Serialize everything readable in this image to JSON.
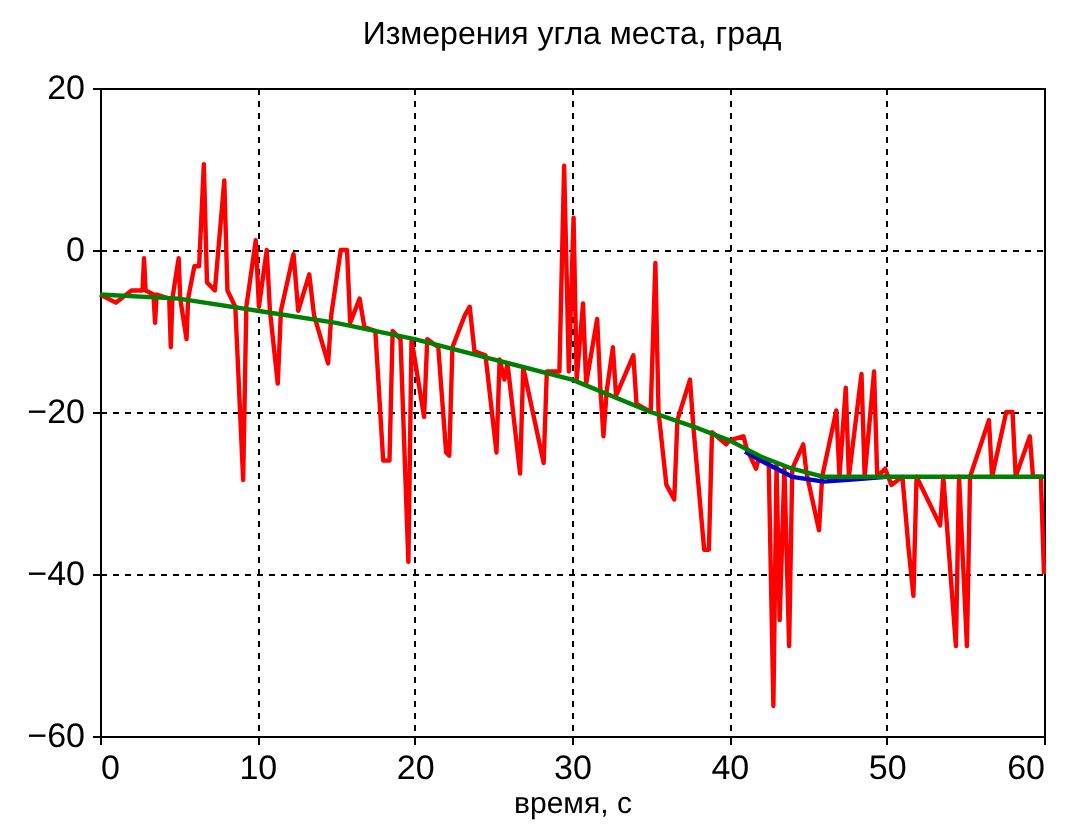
{
  "chart_data": {
    "type": "line",
    "title": "Измерения угла места, град",
    "xlabel": "время, с",
    "xlim": [
      0,
      60
    ],
    "xticks": [
      0,
      10,
      20,
      30,
      40,
      50,
      60
    ],
    "ylim": [
      -60,
      20
    ],
    "yticks": [
      -60,
      -40,
      -20,
      0,
      20
    ],
    "grid": true,
    "line_style": "solid",
    "series": [
      {
        "color": "#ff0000",
        "x": [
          0,
          1,
          2,
          2.7,
          2.8,
          2.9,
          3.4,
          3.5,
          3.6,
          4.4,
          4.5,
          4.6,
          5.0,
          5.1,
          5.5,
          5.6,
          6.0,
          6.3,
          6.6,
          6.8,
          7.3,
          7.9,
          8.1,
          8.6,
          9.1,
          9.3,
          9.9,
          10.1,
          10.6,
          10.8,
          11.3,
          11.5,
          12.3,
          12.6,
          13.3,
          13.6,
          14.5,
          14.7,
          15.3,
          15.7,
          15.9,
          16.5,
          16.8,
          17.5,
          18.0,
          18.4,
          18.6,
          19.1,
          19.6,
          19.8,
          20.6,
          20.8,
          21.5,
          22.0,
          22.2,
          22.4,
          23.2,
          23.5,
          23.8,
          24.5,
          25.2,
          25.4,
          25.7,
          25.9,
          26.7,
          26.9,
          28.2,
          28.4,
          29.2,
          29.5,
          29.8,
          30.1,
          30.3,
          30.7,
          30.9,
          31.6,
          31.8,
          32.0,
          32.2,
          32.6,
          32.8,
          33.9,
          34.1,
          35.0,
          35.3,
          35.5,
          36.0,
          36.5,
          36.7,
          37.5,
          37.7,
          38.4,
          38.7,
          38.9,
          39.8,
          40.0,
          40.9,
          41.1,
          41.7,
          41.9,
          42.5,
          42.8,
          43.0,
          43.2,
          43.5,
          43.8,
          44.0,
          44.7,
          44.9,
          45.7,
          45.9,
          46.8,
          47.0,
          47.4,
          47.6,
          48.4,
          48.6,
          49.2,
          49.4,
          49.9,
          50.3,
          51.0,
          51.4,
          51.7,
          51.9,
          53.4,
          53.6,
          54.4,
          54.6,
          55.1,
          55.3,
          56.5,
          56.7,
          57.6,
          58.0,
          58.2,
          59.1,
          59.3,
          59.8,
          60
        ],
        "values": [
          -5.5,
          -6.5,
          -5,
          -5,
          -1,
          -5,
          -5.5,
          -9,
          -5.5,
          -6,
          -12,
          -6,
          -1,
          -6,
          -11,
          -6,
          -2,
          -2,
          10.6,
          -4,
          -5,
          8.6,
          -5,
          -7,
          -28.4,
          -7,
          1.2,
          -7,
          0,
          -7.5,
          -16.5,
          -7.5,
          -0.5,
          -7.5,
          -3,
          -8,
          -14,
          -8,
          0,
          0,
          -9,
          -6,
          -9.5,
          -10,
          -26,
          -26,
          -10,
          -11,
          -38.5,
          -11,
          -20.6,
          -11,
          -12,
          -25,
          -25.4,
          -12,
          -8,
          -7,
          -12.5,
          -13,
          -25,
          -13.5,
          -16,
          -14,
          -27.6,
          -14.5,
          -26.3,
          -15,
          -15,
          10.4,
          -15,
          4,
          -16,
          -6.6,
          -16.5,
          -8.5,
          -17,
          -23,
          -17.5,
          -12,
          -18,
          -13,
          -19,
          -20,
          -1.6,
          -20,
          -29,
          -30.8,
          -21,
          -16,
          -21.5,
          -37,
          -37,
          -22.5,
          -24,
          -23.5,
          -23,
          -24.5,
          -27,
          -25.5,
          -26,
          -56.3,
          -26.5,
          -45.7,
          -27,
          -48.9,
          -27,
          -24,
          -27.5,
          -34.6,
          -28,
          -19.8,
          -28,
          -17,
          -28,
          -15.3,
          -28,
          -15,
          -28,
          -27,
          -29,
          -28,
          -37,
          -42.7,
          -28,
          -34,
          -28,
          -48.9,
          -28,
          -48.9,
          -28,
          -21,
          -28,
          -20,
          -20,
          -28,
          -23,
          -28,
          -28,
          -40
        ]
      },
      {
        "color": "#0000cc",
        "x": [
          41,
          42,
          44,
          46,
          48,
          50
        ],
        "values": [
          -24.9,
          -26,
          -28,
          -28.6,
          -28.3,
          -28
        ]
      },
      {
        "color": "#008000",
        "x": [
          0,
          5,
          10,
          15,
          20,
          25,
          30,
          35,
          38,
          40,
          42,
          44,
          46,
          48,
          50,
          55,
          60
        ],
        "values": [
          -5.5,
          -6,
          -7.5,
          -9,
          -11,
          -13.5,
          -16,
          -20,
          -22,
          -23.5,
          -25.5,
          -27,
          -28,
          -28,
          -28,
          -28,
          -28
        ]
      }
    ]
  }
}
